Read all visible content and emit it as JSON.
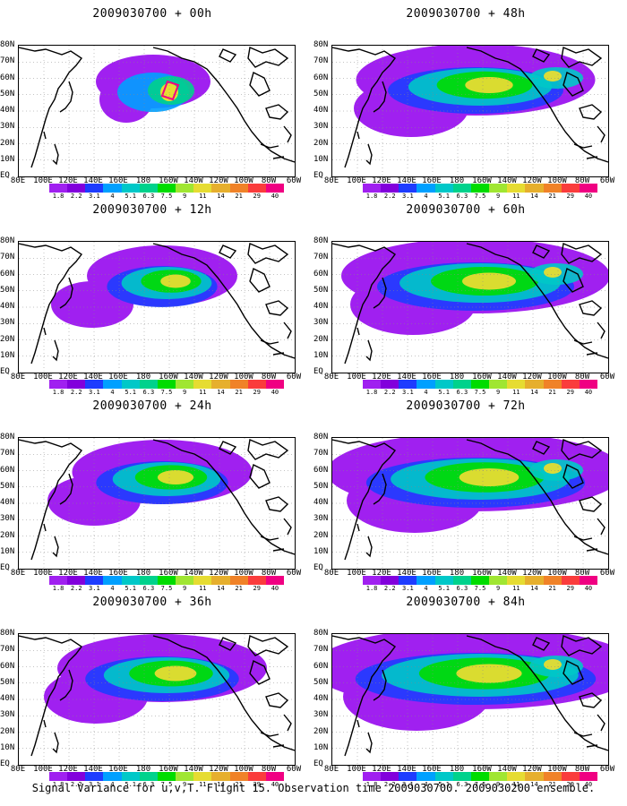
{
  "panels": [
    {
      "title": "2009030700 + 00h",
      "col": 0,
      "row": 0,
      "spread": 0
    },
    {
      "title": "2009030700 + 48h",
      "col": 1,
      "row": 0,
      "spread": 4
    },
    {
      "title": "2009030700 + 12h",
      "col": 0,
      "row": 1,
      "spread": 1
    },
    {
      "title": "2009030700 + 60h",
      "col": 1,
      "row": 1,
      "spread": 5
    },
    {
      "title": "2009030700 + 24h",
      "col": 0,
      "row": 2,
      "spread": 2
    },
    {
      "title": "2009030700 + 72h",
      "col": 1,
      "row": 2,
      "spread": 6
    },
    {
      "title": "2009030700 + 36h",
      "col": 0,
      "row": 3,
      "spread": 3
    },
    {
      "title": "2009030700 + 84h",
      "col": 1,
      "row": 3,
      "spread": 7
    }
  ],
  "lon_labels": [
    "80E",
    "100E",
    "120E",
    "140E",
    "160E",
    "180",
    "160W",
    "140W",
    "120W",
    "100W",
    "80W",
    "60W"
  ],
  "lat_labels": [
    "80N",
    "70N",
    "60N",
    "50N",
    "40N",
    "30N",
    "20N",
    "10N",
    "EQ"
  ],
  "colorbar": {
    "labels": [
      "1.8",
      "2.2",
      "3.1",
      "4",
      "5.1",
      "6.3",
      "7.5",
      "9",
      "11",
      "14",
      "21",
      "29",
      "40"
    ],
    "colors": [
      "#a020f0",
      "#8200dc",
      "#1e3cff",
      "#00a0ff",
      "#00c8c8",
      "#00d28c",
      "#00dc00",
      "#a0e632",
      "#e6dc32",
      "#e6af2d",
      "#f08228",
      "#fa3c3c",
      "#f00082"
    ]
  },
  "caption": "Signal Variance for u,v,T. Flight 15. Observation time 2009030700. 2009030200 ensemble."
}
